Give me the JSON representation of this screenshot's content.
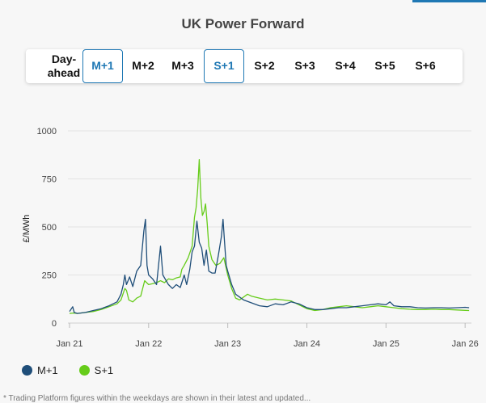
{
  "page": {
    "title": "UK Power Forward",
    "footer_note": "* Trading Platform figures within the weekdays are shown in their latest and updated..."
  },
  "tabs": [
    {
      "label": "Day-ahead",
      "active": false
    },
    {
      "label": "M+1",
      "active": true
    },
    {
      "label": "M+2",
      "active": false
    },
    {
      "label": "M+3",
      "active": false
    },
    {
      "label": "S+1",
      "active": true
    },
    {
      "label": "S+2",
      "active": false
    },
    {
      "label": "S+3",
      "active": false
    },
    {
      "label": "S+4",
      "active": false
    },
    {
      "label": "S+5",
      "active": false
    },
    {
      "label": "S+6",
      "active": false
    }
  ],
  "colors": {
    "m1": "#1f4e79",
    "s1": "#66cc1a",
    "grid": "#e3e3e3",
    "accent": "#1f78b4"
  },
  "chart_data": {
    "type": "line",
    "title": "",
    "ylabel": "£/MWh",
    "xlabel": "",
    "ylim": [
      0,
      1000
    ],
    "yticks": [
      0,
      250,
      500,
      750,
      1000
    ],
    "xticks": [
      {
        "label": "Jan 21",
        "t": 2021.0
      },
      {
        "label": "Jan 22",
        "t": 2022.0
      },
      {
        "label": "Jan 23",
        "t": 2023.0
      },
      {
        "label": "Jan 24",
        "t": 2024.0
      },
      {
        "label": "Jan 25",
        "t": 2025.0
      },
      {
        "label": "Jan 26",
        "t": 2026.0
      }
    ],
    "xlim": [
      2020.98,
      2026.08
    ],
    "grid": true,
    "legend_position": "bottom-left",
    "series": [
      {
        "name": "M+1",
        "color": "#1f4e79",
        "points": [
          [
            2021.0,
            60
          ],
          [
            2021.04,
            85
          ],
          [
            2021.06,
            55
          ],
          [
            2021.1,
            50
          ],
          [
            2021.2,
            55
          ],
          [
            2021.3,
            65
          ],
          [
            2021.4,
            75
          ],
          [
            2021.5,
            90
          ],
          [
            2021.6,
            110
          ],
          [
            2021.65,
            150
          ],
          [
            2021.68,
            200
          ],
          [
            2021.7,
            250
          ],
          [
            2021.72,
            200
          ],
          [
            2021.76,
            240
          ],
          [
            2021.8,
            190
          ],
          [
            2021.85,
            270
          ],
          [
            2021.9,
            300
          ],
          [
            2021.94,
            480
          ],
          [
            2021.96,
            540
          ],
          [
            2021.98,
            300
          ],
          [
            2022.0,
            250
          ],
          [
            2022.05,
            230
          ],
          [
            2022.1,
            200
          ],
          [
            2022.15,
            400
          ],
          [
            2022.18,
            250
          ],
          [
            2022.25,
            200
          ],
          [
            2022.3,
            180
          ],
          [
            2022.35,
            200
          ],
          [
            2022.4,
            185
          ],
          [
            2022.45,
            250
          ],
          [
            2022.48,
            200
          ],
          [
            2022.52,
            280
          ],
          [
            2022.55,
            370
          ],
          [
            2022.58,
            400
          ],
          [
            2022.61,
            530
          ],
          [
            2022.64,
            420
          ],
          [
            2022.67,
            390
          ],
          [
            2022.7,
            300
          ],
          [
            2022.73,
            380
          ],
          [
            2022.76,
            270
          ],
          [
            2022.8,
            260
          ],
          [
            2022.84,
            260
          ],
          [
            2022.88,
            350
          ],
          [
            2022.92,
            450
          ],
          [
            2022.94,
            540
          ],
          [
            2022.96,
            420
          ],
          [
            2022.98,
            300
          ],
          [
            2023.0,
            270
          ],
          [
            2023.05,
            200
          ],
          [
            2023.1,
            150
          ],
          [
            2023.2,
            120
          ],
          [
            2023.3,
            105
          ],
          [
            2023.4,
            90
          ],
          [
            2023.5,
            85
          ],
          [
            2023.6,
            100
          ],
          [
            2023.7,
            95
          ],
          [
            2023.8,
            110
          ],
          [
            2023.9,
            100
          ],
          [
            2024.0,
            80
          ],
          [
            2024.1,
            70
          ],
          [
            2024.2,
            70
          ],
          [
            2024.3,
            75
          ],
          [
            2024.4,
            80
          ],
          [
            2024.5,
            80
          ],
          [
            2024.6,
            85
          ],
          [
            2024.7,
            90
          ],
          [
            2024.8,
            95
          ],
          [
            2024.9,
            100
          ],
          [
            2025.0,
            95
          ],
          [
            2025.05,
            110
          ],
          [
            2025.1,
            90
          ],
          [
            2025.2,
            85
          ],
          [
            2025.3,
            85
          ],
          [
            2025.4,
            80
          ],
          [
            2025.5,
            78
          ],
          [
            2025.6,
            80
          ],
          [
            2025.7,
            80
          ],
          [
            2025.8,
            78
          ],
          [
            2025.9,
            80
          ],
          [
            2026.0,
            82
          ],
          [
            2026.05,
            80
          ]
        ]
      },
      {
        "name": "S+1",
        "color": "#66cc1a",
        "points": [
          [
            2021.0,
            50
          ],
          [
            2021.05,
            52
          ],
          [
            2021.1,
            50
          ],
          [
            2021.2,
            55
          ],
          [
            2021.3,
            60
          ],
          [
            2021.4,
            70
          ],
          [
            2021.5,
            85
          ],
          [
            2021.6,
            100
          ],
          [
            2021.65,
            120
          ],
          [
            2021.7,
            180
          ],
          [
            2021.72,
            170
          ],
          [
            2021.75,
            120
          ],
          [
            2021.8,
            110
          ],
          [
            2021.85,
            130
          ],
          [
            2021.9,
            140
          ],
          [
            2021.95,
            220
          ],
          [
            2022.0,
            200
          ],
          [
            2022.05,
            205
          ],
          [
            2022.1,
            210
          ],
          [
            2022.15,
            220
          ],
          [
            2022.2,
            210
          ],
          [
            2022.25,
            230
          ],
          [
            2022.3,
            225
          ],
          [
            2022.35,
            235
          ],
          [
            2022.4,
            240
          ],
          [
            2022.42,
            280
          ],
          [
            2022.45,
            300
          ],
          [
            2022.5,
            340
          ],
          [
            2022.55,
            400
          ],
          [
            2022.58,
            550
          ],
          [
            2022.6,
            600
          ],
          [
            2022.62,
            700
          ],
          [
            2022.64,
            850
          ],
          [
            2022.66,
            650
          ],
          [
            2022.68,
            560
          ],
          [
            2022.7,
            580
          ],
          [
            2022.72,
            620
          ],
          [
            2022.74,
            520
          ],
          [
            2022.76,
            400
          ],
          [
            2022.8,
            330
          ],
          [
            2022.85,
            300
          ],
          [
            2022.9,
            310
          ],
          [
            2022.95,
            340
          ],
          [
            2023.0,
            250
          ],
          [
            2023.05,
            180
          ],
          [
            2023.1,
            130
          ],
          [
            2023.15,
            120
          ],
          [
            2023.25,
            150
          ],
          [
            2023.3,
            140
          ],
          [
            2023.4,
            130
          ],
          [
            2023.5,
            120
          ],
          [
            2023.6,
            125
          ],
          [
            2023.7,
            120
          ],
          [
            2023.8,
            115
          ],
          [
            2023.9,
            95
          ],
          [
            2024.0,
            75
          ],
          [
            2024.1,
            65
          ],
          [
            2024.2,
            70
          ],
          [
            2024.3,
            80
          ],
          [
            2024.4,
            85
          ],
          [
            2024.5,
            90
          ],
          [
            2024.6,
            85
          ],
          [
            2024.7,
            80
          ],
          [
            2024.8,
            85
          ],
          [
            2024.9,
            90
          ],
          [
            2025.0,
            85
          ],
          [
            2025.1,
            80
          ],
          [
            2025.2,
            75
          ],
          [
            2025.3,
            72
          ],
          [
            2025.4,
            70
          ],
          [
            2025.5,
            70
          ],
          [
            2025.6,
            72
          ],
          [
            2025.7,
            70
          ],
          [
            2025.8,
            70
          ],
          [
            2025.9,
            68
          ],
          [
            2026.0,
            66
          ],
          [
            2026.05,
            65
          ]
        ]
      }
    ]
  }
}
